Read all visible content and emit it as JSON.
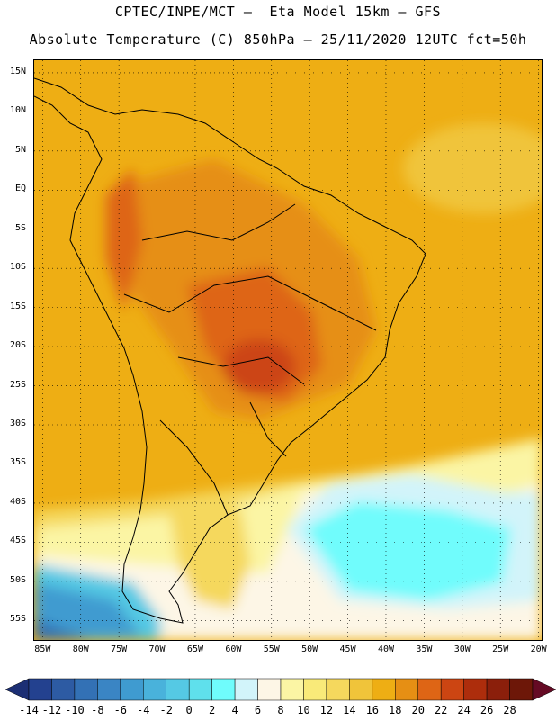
{
  "header": {
    "line1": "CPTEC/INPE/MCT –  Eta Model 15km – GFS",
    "line2": "Absolute Temperature (C) 850hPa – 25/11/2020 12UTC fct=50h"
  },
  "map": {
    "latitude_labels": [
      "15N",
      "10N",
      "5N",
      "EQ",
      "5S",
      "10S",
      "15S",
      "20S",
      "25S",
      "30S",
      "35S",
      "40S",
      "45S",
      "50S",
      "55S"
    ],
    "longitude_labels": [
      "85W",
      "80W",
      "75W",
      "70W",
      "65W",
      "60W",
      "55W",
      "50W",
      "45W",
      "40W",
      "35W",
      "30W",
      "25W",
      "20W"
    ],
    "latitudes": [
      15,
      10,
      5,
      0,
      -5,
      -10,
      -15,
      -20,
      -25,
      -30,
      -35,
      -40,
      -45,
      -50,
      -55
    ],
    "longitudes": [
      -85,
      -80,
      -75,
      -70,
      -65,
      -60,
      -55,
      -50,
      -45,
      -40,
      -35,
      -30,
      -25,
      -20
    ]
  },
  "colorbar": {
    "labels": [
      "-14",
      "-12",
      "-10",
      "-8",
      "-6",
      "-4",
      "-2",
      "0",
      "2",
      "4",
      "6",
      "8",
      "10",
      "12",
      "14",
      "16",
      "18",
      "20",
      "22",
      "24",
      "26",
      "28"
    ],
    "colors": [
      "#23418f",
      "#2d5ba3",
      "#3371b5",
      "#3a85c4",
      "#3f9bd0",
      "#49b2db",
      "#55c9e4",
      "#5fe0ec",
      "#6ffcfc",
      "#d2f4fa",
      "#fdf6e6",
      "#fbf5a4",
      "#f9ea79",
      "#f5d85d",
      "#f0c43a",
      "#eeae14",
      "#e68f14",
      "#de6515",
      "#cc4512",
      "#ad2d0c",
      "#8b1f0b",
      "#6d1708"
    ],
    "low_color": "#1c2f74",
    "high_color": "#650a24"
  }
}
